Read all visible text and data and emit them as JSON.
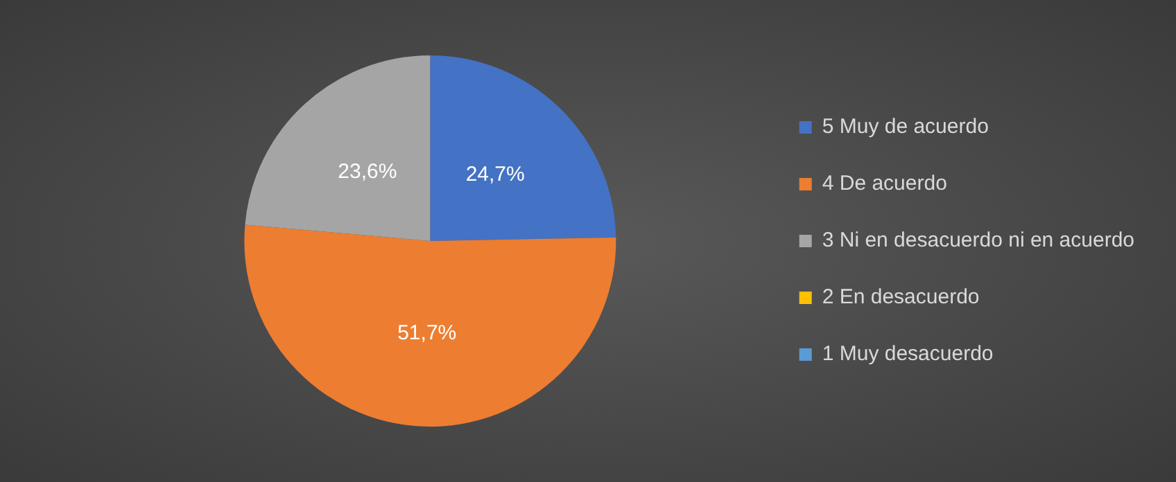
{
  "chart_data": {
    "type": "pie",
    "categories": [
      "5 Muy de acuerdo",
      "4 De acuerdo",
      "3 Ni en desacuerdo ni en acuerdo",
      "2 En desacuerdo",
      "1 Muy desacuerdo"
    ],
    "values": [
      24.7,
      51.7,
      23.6,
      0,
      0
    ],
    "colors": [
      "#4472c4",
      "#ed7d31",
      "#a5a5a5",
      "#ffc000",
      "#5b9bd5"
    ],
    "value_labels": [
      "24,7%",
      "51,7%",
      "23,6%",
      null,
      null
    ],
    "legend": "right"
  }
}
